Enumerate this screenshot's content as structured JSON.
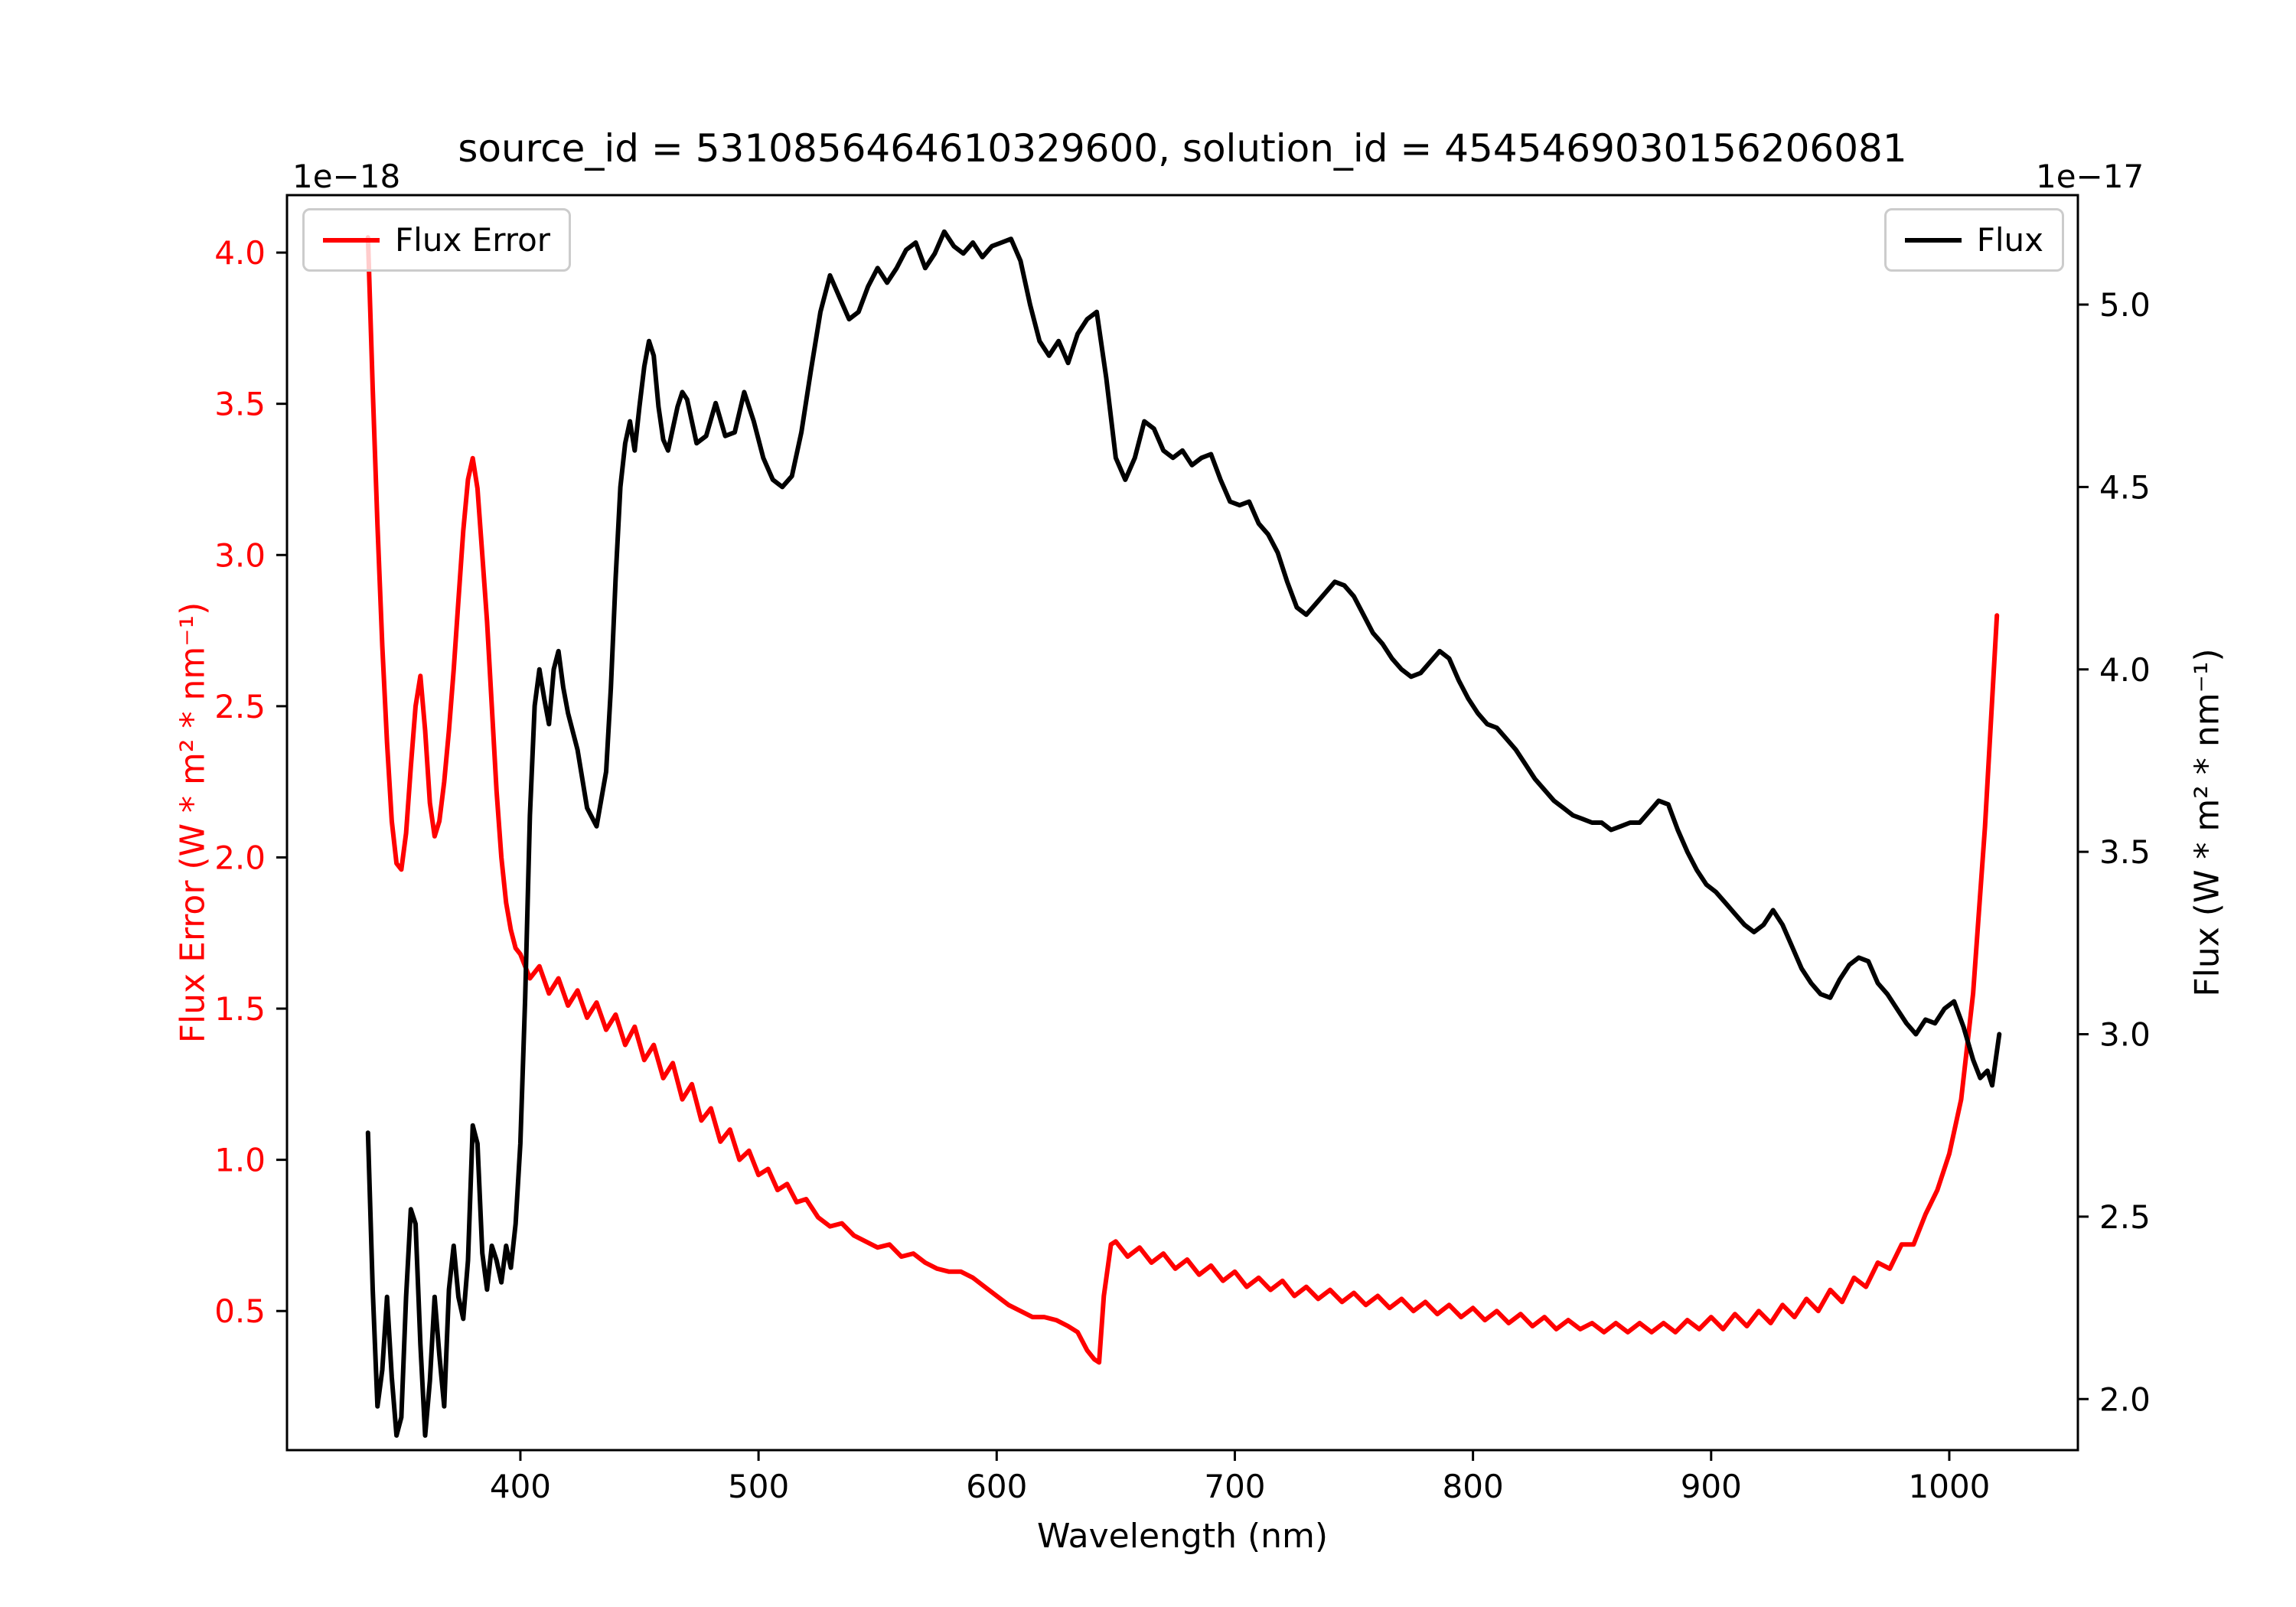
{
  "chart_data": {
    "type": "line",
    "title": "source_id = 5310856464610329600, solution_id = 4545469030156206081",
    "xlabel": "Wavelength (nm)",
    "x_ticks": [
      400,
      500,
      600,
      700,
      800,
      900,
      1000
    ],
    "x_range": [
      302,
      1054
    ],
    "grid": false,
    "y_left": {
      "label": "Flux Error (W * m² * nm⁻¹)",
      "offset": "1e−18",
      "ticks": [
        0.5,
        1.0,
        1.5,
        2.0,
        2.5,
        3.0,
        3.5,
        4.0
      ],
      "range": [
        0.04,
        4.19
      ],
      "color": "#ff0000"
    },
    "y_right": {
      "label": "Flux (W * m² * nm⁻¹)",
      "offset": "1e−17",
      "ticks": [
        2.0,
        2.5,
        3.0,
        3.5,
        4.0,
        4.5,
        5.0
      ],
      "range": [
        1.86,
        5.3
      ],
      "color": "#000000"
    },
    "series": [
      {
        "name": "Flux Error",
        "axis": "left",
        "color": "#ff0000",
        "legend_position": "upper left",
        "x": [
          336,
          338,
          340,
          342,
          344,
          346,
          348,
          350,
          352,
          354,
          356,
          358,
          360,
          362,
          364,
          366,
          368,
          370,
          372,
          374,
          376,
          378,
          380,
          382,
          384,
          386,
          388,
          390,
          392,
          394,
          396,
          398,
          400,
          404,
          408,
          412,
          416,
          420,
          424,
          428,
          432,
          436,
          440,
          444,
          448,
          452,
          456,
          460,
          464,
          468,
          472,
          476,
          480,
          484,
          488,
          492,
          496,
          500,
          504,
          508,
          512,
          516,
          520,
          525,
          530,
          535,
          540,
          545,
          550,
          555,
          560,
          565,
          570,
          575,
          580,
          585,
          590,
          595,
          600,
          605,
          610,
          615,
          620,
          625,
          630,
          634,
          638,
          641,
          643,
          645,
          648,
          650,
          655,
          660,
          665,
          670,
          675,
          680,
          685,
          690,
          695,
          700,
          705,
          710,
          715,
          720,
          725,
          730,
          735,
          740,
          745,
          750,
          755,
          760,
          765,
          770,
          775,
          780,
          785,
          790,
          795,
          800,
          805,
          810,
          815,
          820,
          825,
          830,
          835,
          840,
          845,
          850,
          855,
          860,
          865,
          870,
          875,
          880,
          885,
          890,
          895,
          900,
          905,
          910,
          915,
          920,
          925,
          930,
          935,
          940,
          945,
          950,
          955,
          960,
          965,
          970,
          975,
          980,
          985,
          990,
          995,
          1000,
          1005,
          1010,
          1015,
          1020
        ],
        "y": [
          4.05,
          3.55,
          3.1,
          2.7,
          2.38,
          2.12,
          1.98,
          1.96,
          2.08,
          2.3,
          2.5,
          2.6,
          2.42,
          2.18,
          2.07,
          2.12,
          2.25,
          2.42,
          2.62,
          2.85,
          3.08,
          3.25,
          3.32,
          3.22,
          3.0,
          2.78,
          2.5,
          2.22,
          2.0,
          1.85,
          1.76,
          1.7,
          1.68,
          1.6,
          1.64,
          1.55,
          1.6,
          1.51,
          1.56,
          1.47,
          1.52,
          1.43,
          1.48,
          1.38,
          1.44,
          1.33,
          1.38,
          1.27,
          1.32,
          1.2,
          1.25,
          1.13,
          1.17,
          1.06,
          1.1,
          1.0,
          1.03,
          0.95,
          0.97,
          0.9,
          0.92,
          0.86,
          0.87,
          0.81,
          0.78,
          0.79,
          0.75,
          0.73,
          0.71,
          0.72,
          0.68,
          0.69,
          0.66,
          0.64,
          0.63,
          0.63,
          0.61,
          0.58,
          0.55,
          0.52,
          0.5,
          0.48,
          0.48,
          0.47,
          0.45,
          0.43,
          0.37,
          0.34,
          0.33,
          0.55,
          0.72,
          0.73,
          0.68,
          0.71,
          0.66,
          0.69,
          0.64,
          0.67,
          0.62,
          0.65,
          0.6,
          0.63,
          0.58,
          0.61,
          0.57,
          0.6,
          0.55,
          0.58,
          0.54,
          0.57,
          0.53,
          0.56,
          0.52,
          0.55,
          0.51,
          0.54,
          0.5,
          0.53,
          0.49,
          0.52,
          0.48,
          0.51,
          0.47,
          0.5,
          0.46,
          0.49,
          0.45,
          0.48,
          0.44,
          0.47,
          0.44,
          0.46,
          0.43,
          0.46,
          0.43,
          0.46,
          0.43,
          0.46,
          0.43,
          0.47,
          0.44,
          0.48,
          0.44,
          0.49,
          0.45,
          0.5,
          0.46,
          0.52,
          0.48,
          0.54,
          0.5,
          0.57,
          0.53,
          0.61,
          0.58,
          0.66,
          0.64,
          0.72,
          0.72,
          0.82,
          0.9,
          1.02,
          1.2,
          1.55,
          2.1,
          2.8
        ]
      },
      {
        "name": "Flux",
        "axis": "right",
        "color": "#000000",
        "legend_position": "upper right",
        "x": [
          336,
          338,
          340,
          342,
          344,
          346,
          348,
          350,
          352,
          354,
          356,
          358,
          360,
          362,
          364,
          366,
          368,
          370,
          372,
          374,
          376,
          378,
          380,
          382,
          384,
          386,
          388,
          390,
          392,
          394,
          396,
          398,
          400,
          402,
          404,
          406,
          408,
          410,
          412,
          414,
          416,
          418,
          420,
          424,
          428,
          432,
          436,
          438,
          440,
          442,
          444,
          446,
          448,
          450,
          452,
          454,
          456,
          458,
          460,
          462,
          464,
          466,
          468,
          470,
          474,
          478,
          482,
          486,
          490,
          494,
          498,
          502,
          506,
          510,
          514,
          518,
          522,
          526,
          530,
          534,
          538,
          542,
          546,
          550,
          554,
          558,
          562,
          566,
          570,
          574,
          578,
          582,
          586,
          590,
          594,
          598,
          602,
          606,
          610,
          614,
          618,
          622,
          626,
          630,
          634,
          638,
          642,
          646,
          650,
          654,
          658,
          662,
          666,
          670,
          674,
          678,
          682,
          686,
          690,
          694,
          698,
          702,
          706,
          710,
          714,
          718,
          722,
          726,
          730,
          734,
          738,
          742,
          746,
          750,
          754,
          758,
          762,
          766,
          770,
          774,
          778,
          782,
          786,
          790,
          794,
          798,
          802,
          806,
          810,
          814,
          818,
          822,
          826,
          830,
          834,
          838,
          842,
          846,
          850,
          854,
          858,
          862,
          866,
          870,
          874,
          878,
          882,
          886,
          890,
          894,
          898,
          902,
          906,
          910,
          914,
          918,
          922,
          926,
          930,
          934,
          938,
          942,
          946,
          950,
          954,
          958,
          962,
          966,
          970,
          974,
          978,
          982,
          986,
          990,
          994,
          998,
          1002,
          1006,
          1010,
          1013,
          1016,
          1018,
          1021
        ],
        "y": [
          2.73,
          2.3,
          1.98,
          2.08,
          2.28,
          2.06,
          1.9,
          1.95,
          2.28,
          2.52,
          2.48,
          2.15,
          1.9,
          2.05,
          2.28,
          2.12,
          1.98,
          2.3,
          2.42,
          2.28,
          2.22,
          2.38,
          2.75,
          2.7,
          2.4,
          2.3,
          2.42,
          2.38,
          2.32,
          2.42,
          2.36,
          2.48,
          2.7,
          3.1,
          3.6,
          3.9,
          4.0,
          3.92,
          3.85,
          4.0,
          4.05,
          3.95,
          3.88,
          3.78,
          3.62,
          3.57,
          3.72,
          3.95,
          4.25,
          4.5,
          4.62,
          4.68,
          4.6,
          4.72,
          4.83,
          4.9,
          4.86,
          4.72,
          4.63,
          4.6,
          4.66,
          4.72,
          4.76,
          4.74,
          4.62,
          4.64,
          4.73,
          4.64,
          4.65,
          4.76,
          4.68,
          4.58,
          4.52,
          4.5,
          4.53,
          4.65,
          4.82,
          4.98,
          5.08,
          5.02,
          4.96,
          4.98,
          5.05,
          5.1,
          5.06,
          5.1,
          5.15,
          5.17,
          5.1,
          5.14,
          5.2,
          5.16,
          5.14,
          5.17,
          5.13,
          5.16,
          5.17,
          5.18,
          5.12,
          5.0,
          4.9,
          4.86,
          4.9,
          4.84,
          4.92,
          4.96,
          4.98,
          4.8,
          4.58,
          4.52,
          4.58,
          4.68,
          4.66,
          4.6,
          4.58,
          4.6,
          4.56,
          4.58,
          4.59,
          4.52,
          4.46,
          4.45,
          4.46,
          4.4,
          4.37,
          4.32,
          4.24,
          4.17,
          4.15,
          4.18,
          4.21,
          4.24,
          4.23,
          4.2,
          4.15,
          4.1,
          4.07,
          4.03,
          4.0,
          3.98,
          3.99,
          4.02,
          4.05,
          4.03,
          3.97,
          3.92,
          3.88,
          3.85,
          3.84,
          3.81,
          3.78,
          3.74,
          3.7,
          3.67,
          3.64,
          3.62,
          3.6,
          3.59,
          3.58,
          3.58,
          3.56,
          3.57,
          3.58,
          3.58,
          3.61,
          3.64,
          3.63,
          3.56,
          3.5,
          3.45,
          3.41,
          3.39,
          3.36,
          3.33,
          3.3,
          3.28,
          3.3,
          3.34,
          3.3,
          3.24,
          3.18,
          3.14,
          3.11,
          3.1,
          3.15,
          3.19,
          3.21,
          3.2,
          3.14,
          3.11,
          3.07,
          3.03,
          3.0,
          3.04,
          3.03,
          3.07,
          3.09,
          3.02,
          2.93,
          2.88,
          2.9,
          2.86,
          3.0
        ]
      }
    ]
  }
}
